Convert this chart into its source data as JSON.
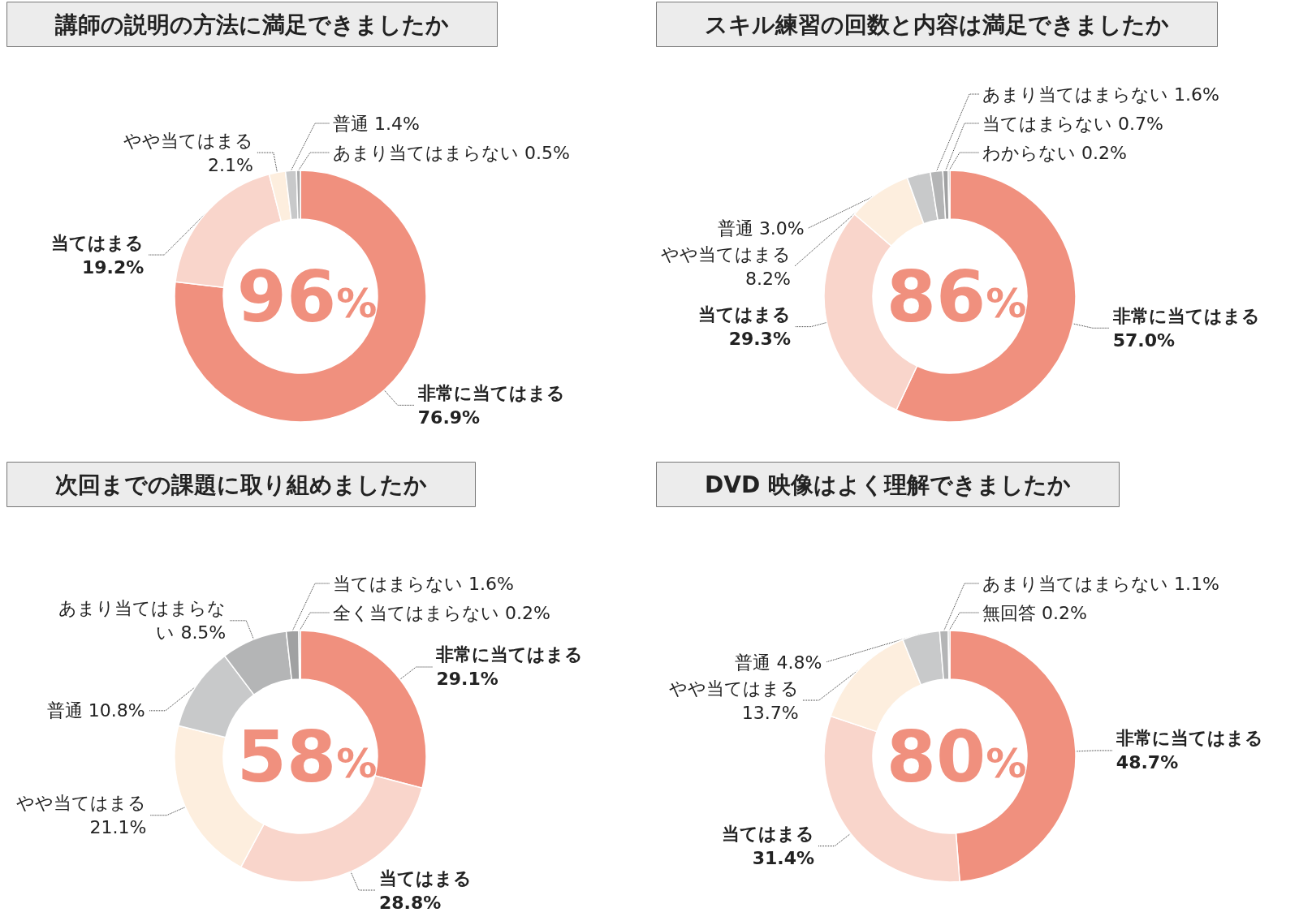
{
  "chart_data": [
    {
      "type": "donut",
      "title": "講師の説明の方法に満足できましたか",
      "categories": [
        "非常に当てはまる",
        "当てはまる",
        "やや当てはまる",
        "普通",
        "あまり当てはまらない"
      ],
      "values": [
        76.9,
        19.2,
        2.1,
        1.4,
        0.5
      ],
      "value_labels": [
        "76.9%",
        "19.2%",
        "2.1%",
        "1.4%",
        "0.5%"
      ],
      "colors": [
        "#f0907e",
        "#f9d5cb",
        "#fdeede",
        "#c8c9ca",
        "#a9aaab"
      ],
      "annotations": [
        "96%"
      ],
      "legend": false
    },
    {
      "type": "donut",
      "title": "スキル練習の回数と内容は満足できましたか",
      "categories": [
        "非常に当てはまる",
        "当てはまる",
        "やや当てはまる",
        "普通",
        "あまり当てはまらない",
        "当てはまらない",
        "わからない"
      ],
      "values": [
        57.0,
        29.3,
        8.2,
        3.0,
        1.6,
        0.7,
        0.2
      ],
      "value_labels": [
        "57.0%",
        "29.3%",
        "8.2%",
        "3.0%",
        "1.6%",
        "0.7%",
        "0.2%"
      ],
      "colors": [
        "#f0907e",
        "#f9d5cb",
        "#fdeede",
        "#c8c9ca",
        "#b4b5b6",
        "#a0a1a2",
        "#8a8b8c"
      ],
      "annotations": [
        "86%"
      ],
      "legend": false
    },
    {
      "type": "donut",
      "title": "次回までの課題に取り組めましたか",
      "categories": [
        "非常に当てはまる",
        "当てはまる",
        "やや当てはまる",
        "普通",
        "あまり当てはまらない",
        "当てはまらない",
        "全く当てはまらない"
      ],
      "values": [
        29.1,
        28.8,
        21.1,
        10.8,
        8.5,
        1.6,
        0.2
      ],
      "value_labels": [
        "29.1%",
        "28.8%",
        "21.1%",
        "10.8%",
        "8.5%",
        "1.6%",
        "0.2%"
      ],
      "colors": [
        "#f0907e",
        "#f9d5cb",
        "#fdeede",
        "#c8c9ca",
        "#b4b5b6",
        "#a0a1a2",
        "#8a8b8c"
      ],
      "annotations": [
        "58%"
      ],
      "legend": false
    },
    {
      "type": "donut",
      "title": "DVD 映像はよく理解できましたか",
      "categories": [
        "非常に当てはまる",
        "当てはまる",
        "やや当てはまる",
        "普通",
        "あまり当てはまらない",
        "無回答"
      ],
      "values": [
        48.7,
        31.4,
        13.7,
        4.8,
        1.1,
        0.2
      ],
      "value_labels": [
        "48.7%",
        "31.4%",
        "13.7%",
        "4.8%",
        "1.1%",
        "0.2%"
      ],
      "colors": [
        "#f0907e",
        "#f9d5cb",
        "#fdeede",
        "#c8c9ca",
        "#b4b5b6",
        "#a0a1a2"
      ],
      "annotations": [
        "80%"
      ],
      "legend": false
    }
  ]
}
